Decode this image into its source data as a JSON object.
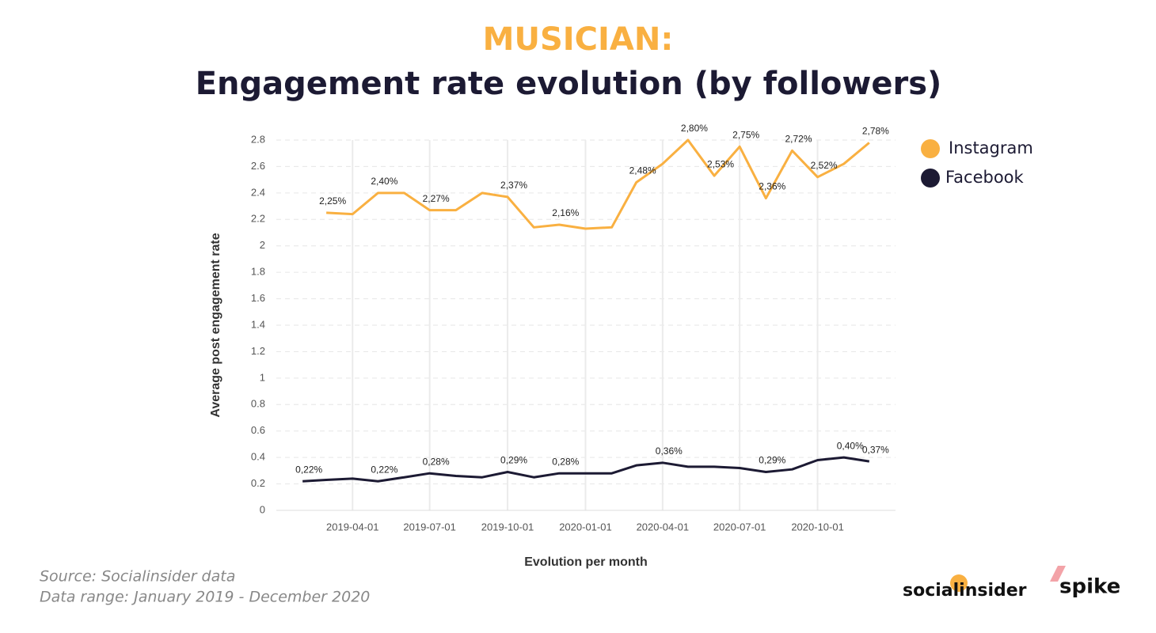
{
  "chart_data": {
    "type": "line",
    "title": "MUSICIAN:",
    "subtitle": "Engagement rate evolution (by followers)",
    "x_label": "Evolution per month",
    "y_label": "Average post engagement rate",
    "xlim": [
      "2019-01-01",
      "2021-01-01"
    ],
    "xticks": [
      "2019-04-01",
      "2019-07-01",
      "2019-10-01",
      "2020-01-01",
      "2020-04-01",
      "2020-07-01",
      "2020-10-01"
    ],
    "ylim": [
      0,
      2.8
    ],
    "yticks": [
      0,
      0.2,
      0.4,
      0.6,
      0.8,
      1,
      1.2,
      1.4,
      1.6,
      1.8,
      2,
      2.2,
      2.4,
      2.6,
      2.8
    ],
    "grid": true,
    "legend": "right",
    "series": [
      {
        "name": "Instagram",
        "color": "#f9b041",
        "x": [
          "2019-03-01",
          "2019-04-01",
          "2019-05-01",
          "2019-06-01",
          "2019-07-01",
          "2019-08-01",
          "2019-09-01",
          "2019-10-01",
          "2019-11-01",
          "2019-12-01",
          "2020-01-01",
          "2020-02-01",
          "2020-03-01",
          "2020-04-01",
          "2020-05-01",
          "2020-06-01",
          "2020-07-01",
          "2020-08-01",
          "2020-09-01",
          "2020-10-01",
          "2020-11-01",
          "2020-12-01"
        ],
        "values": [
          2.25,
          2.24,
          2.4,
          2.4,
          2.27,
          2.27,
          2.4,
          2.37,
          2.14,
          2.16,
          2.13,
          2.14,
          2.48,
          2.62,
          2.8,
          2.53,
          2.75,
          2.36,
          2.72,
          2.52,
          2.62,
          2.78
        ],
        "value_labels": [
          "2,25%",
          null,
          "2,40%",
          null,
          "2,27%",
          null,
          null,
          "2,37%",
          null,
          "2,16%",
          null,
          null,
          "2,48%",
          null,
          "2,80%",
          "2,53%",
          "2,75%",
          "2,36%",
          "2,72%",
          "2,52%",
          null,
          "2,78%"
        ]
      },
      {
        "name": "Facebook",
        "color": "#1c1a33",
        "x": [
          "2019-02-01",
          "2019-03-01",
          "2019-04-01",
          "2019-05-01",
          "2019-06-01",
          "2019-07-01",
          "2019-08-01",
          "2019-09-01",
          "2019-10-01",
          "2019-11-01",
          "2019-12-01",
          "2020-01-01",
          "2020-02-01",
          "2020-03-01",
          "2020-04-01",
          "2020-05-01",
          "2020-06-01",
          "2020-07-01",
          "2020-08-01",
          "2020-09-01",
          "2020-10-01",
          "2020-11-01",
          "2020-12-01"
        ],
        "values": [
          0.22,
          0.23,
          0.24,
          0.22,
          0.25,
          0.28,
          0.26,
          0.25,
          0.29,
          0.25,
          0.28,
          0.28,
          0.28,
          0.34,
          0.36,
          0.33,
          0.33,
          0.32,
          0.29,
          0.31,
          0.38,
          0.4,
          0.37
        ],
        "value_labels": [
          "0,22%",
          null,
          null,
          "0,22%",
          null,
          "0,28%",
          null,
          null,
          "0,29%",
          null,
          "0,28%",
          null,
          null,
          null,
          "0,36%",
          null,
          null,
          null,
          "0,29%",
          null,
          null,
          "0,40%",
          "0,37%"
        ]
      }
    ]
  },
  "footer": {
    "source": "Source: Socialinsider data",
    "data_range": "Data range: January 2019 - December 2020",
    "logos": [
      "socialinsider",
      "spike"
    ]
  }
}
